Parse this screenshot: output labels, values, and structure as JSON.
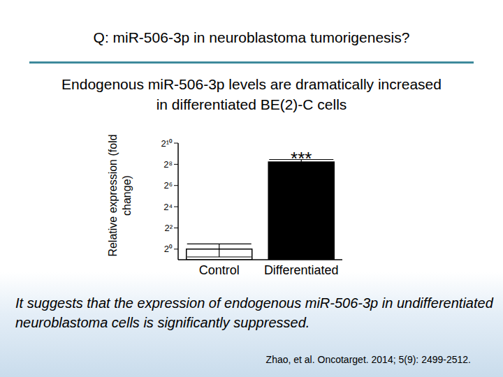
{
  "title": "Q: miR-506-3p in neuroblastoma tumorigenesis?",
  "subtitle": "Endogenous miR-506-3p levels are dramatically increased in differentiated BE(2)-C cells",
  "conclusion": "It suggests that the expression of endogenous miR-506-3p in undifferentiated neuroblastoma cells is significantly suppressed.",
  "citation": "Zhao, et al. Oncotarget. 2014; 5(9): 2499-2512.",
  "chart_data": {
    "type": "bar",
    "y_label": "Relative expression (fold change)",
    "categories": [
      "Control",
      "Differentiated"
    ],
    "values": [
      1,
      300
    ],
    "errors": [
      0.4,
      50
    ],
    "colors": [
      "#ffffff",
      "#000000"
    ],
    "log": "y",
    "grid": false,
    "ylim": [
      0.5,
      1024
    ],
    "yticks": [
      {
        "value": 1,
        "label": "2⁰"
      },
      {
        "value": 4,
        "label": "2²"
      },
      {
        "value": 16,
        "label": "2⁴"
      },
      {
        "value": 64,
        "label": "2⁶"
      },
      {
        "value": 256,
        "label": "2⁸"
      },
      {
        "value": 1024,
        "label": "2¹⁰"
      }
    ],
    "annotations": [
      {
        "text": "***",
        "category": "Differentiated"
      }
    ]
  }
}
